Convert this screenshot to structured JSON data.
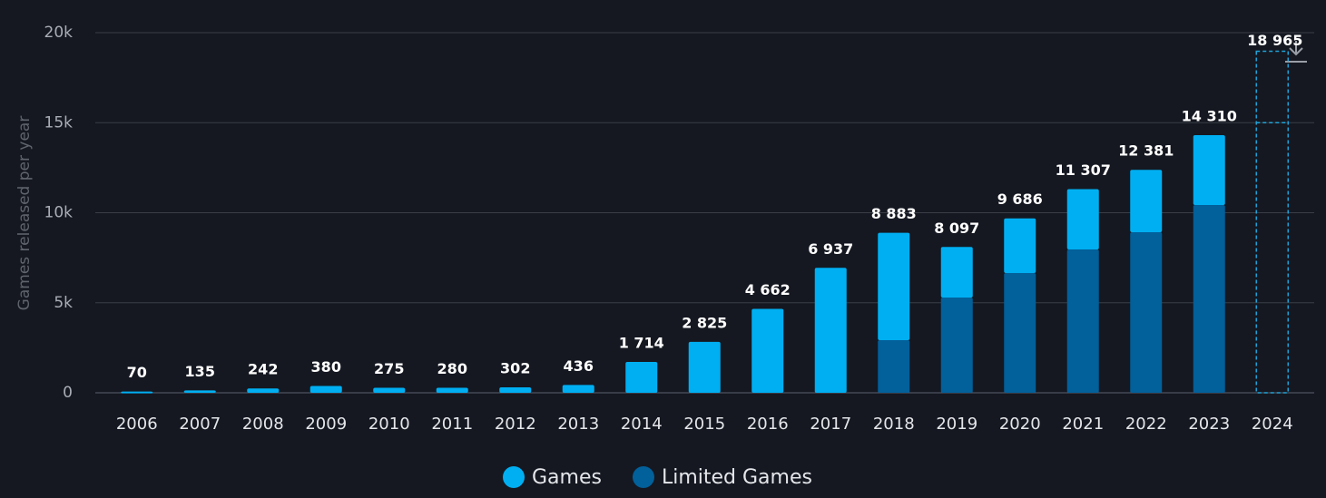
{
  "chart_data": {
    "type": "stacked_bar",
    "y_axis_label": "Games released per year",
    "categories": [
      "2006",
      "2007",
      "2008",
      "2009",
      "2010",
      "2011",
      "2012",
      "2013",
      "2014",
      "2015",
      "2016",
      "2017",
      "2018",
      "2019",
      "2020",
      "2021",
      "2022",
      "2023",
      "2024"
    ],
    "series": [
      {
        "name": "Limited Games",
        "color": "#02609a",
        "values": [
          0,
          0,
          0,
          0,
          0,
          0,
          0,
          0,
          0,
          0,
          0,
          0,
          2920,
          5290,
          6650,
          7960,
          8920,
          10430,
          null
        ]
      },
      {
        "name": "Games",
        "color": "#00aff2",
        "values": [
          70,
          135,
          242,
          380,
          275,
          280,
          302,
          436,
          1714,
          2825,
          4662,
          6937,
          5963,
          2807,
          3036,
          3347,
          3461,
          3880,
          null
        ]
      }
    ],
    "total_labels": [
      "70",
      "135",
      "242",
      "380",
      "275",
      "280",
      "302",
      "436",
      "1 714",
      "2 825",
      "4 662",
      "6 937",
      "8 883",
      "8 097",
      "9 686",
      "11 307",
      "12 381",
      "14 310",
      null
    ],
    "projection": {
      "category": "2024",
      "value": 18965,
      "label": "18 965",
      "so_far": 15000,
      "color": "#1fa2d8"
    },
    "ylim": [
      0,
      20000
    ],
    "yticks": [
      0,
      {
        "value": 5000,
        "label": "5k"
      },
      {
        "value": 10000,
        "label": "10k"
      },
      {
        "value": 15000,
        "label": "15k"
      },
      {
        "value": 20000,
        "label": "20k"
      }
    ],
    "grid": true,
    "legend": "bottom"
  }
}
